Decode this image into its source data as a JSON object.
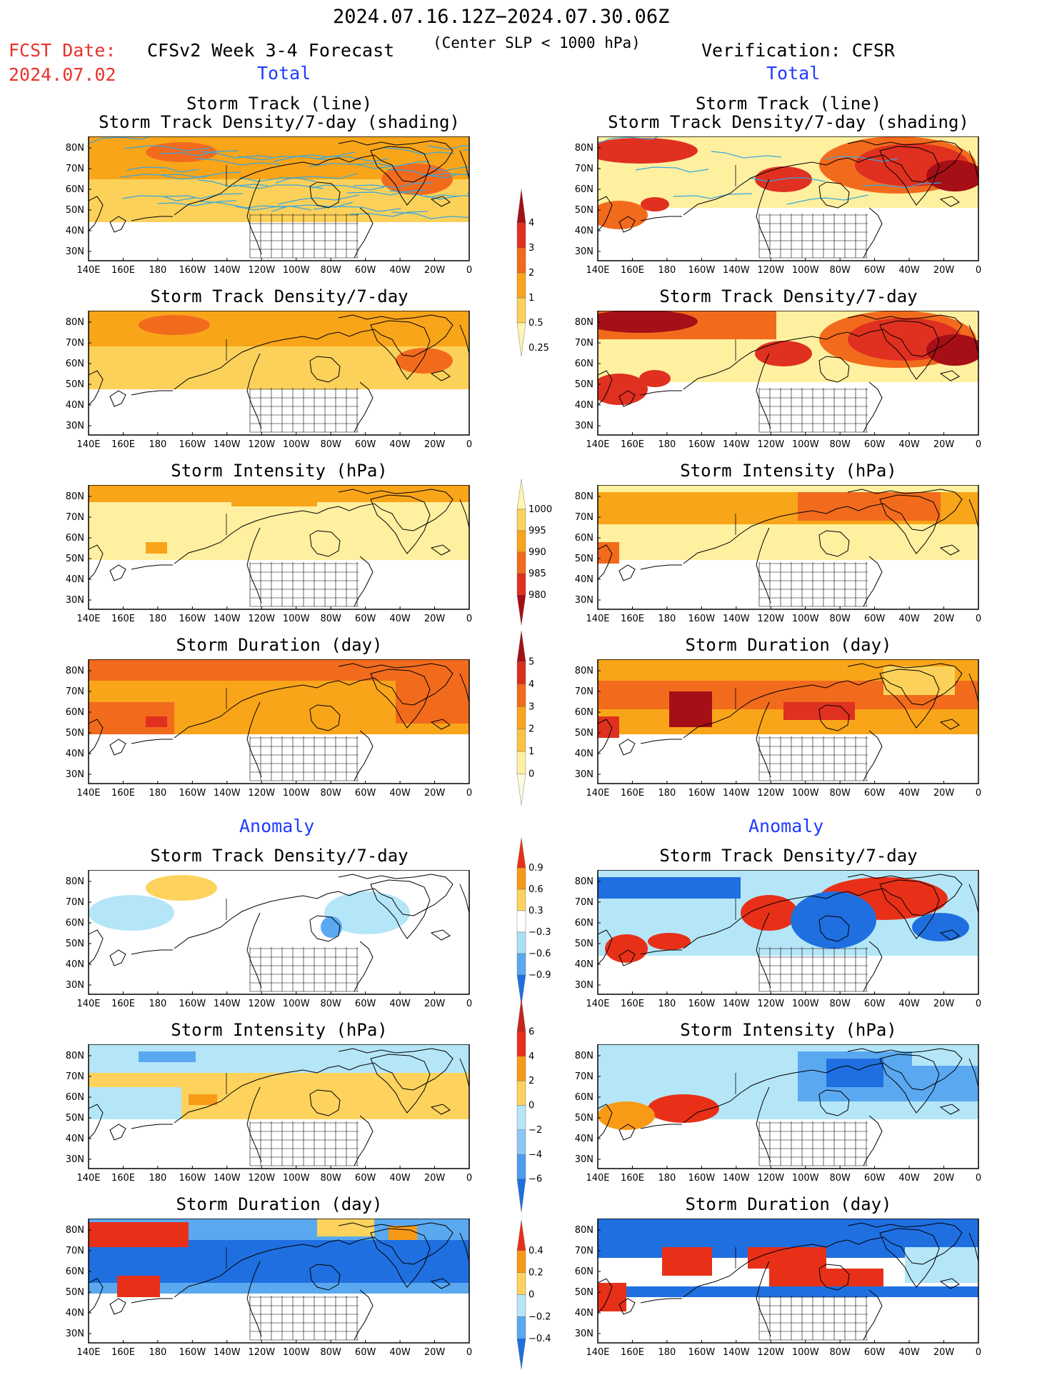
{
  "header": {
    "period": "2024.07.16.12Z−2024.07.30.06Z",
    "fcst_label": "FCST Date:",
    "fcst_date": "2024.07.02",
    "model": "CFSv2 Week 3-4 Forecast",
    "criterion": "(Center SLP < 1000 hPa)",
    "verification": "Verification: CFSR"
  },
  "sections": {
    "total": "Total",
    "anomaly": "Anomaly"
  },
  "panel_titles": {
    "track_line": "Storm Track (line)",
    "track_shading": "Storm Track Density/7-day (shading)",
    "density": "Storm Track Density/7-day",
    "intensity": "Storm Intensity (hPa)",
    "duration": "Storm Duration (day)"
  },
  "axes": {
    "lon_labels": [
      "140E",
      "160E",
      "180",
      "160W",
      "140W",
      "120W",
      "100W",
      "80W",
      "60W",
      "40W",
      "20W",
      "0"
    ],
    "lat_labels": [
      "80N",
      "70N",
      "60N",
      "50N",
      "40N",
      "30N"
    ]
  },
  "colorbars": {
    "density_total": {
      "labels": [
        "4",
        "3",
        "2",
        "1",
        "0.5",
        "0.25"
      ],
      "colors": [
        "#a50f15",
        "#e03020",
        "#f26b1d",
        "#f9a51a",
        "#fcd15a",
        "#fff5b0"
      ]
    },
    "intensity_total": {
      "labels": [
        "1000",
        "995",
        "990",
        "985",
        "980"
      ],
      "colors": [
        "#fff5b0",
        "#fbd35a",
        "#f9a51a",
        "#f26b1d",
        "#e03020",
        "#a50f15"
      ]
    },
    "duration_total": {
      "labels": [
        "5",
        "4",
        "3",
        "2",
        "1",
        "0"
      ],
      "colors": [
        "#a50f15",
        "#d9301d",
        "#f26b1d",
        "#f9a51a",
        "#fbc244",
        "#fff0a0",
        "#fffbe0"
      ]
    },
    "density_anom": {
      "labels": [
        "0.9",
        "0.6",
        "0.3",
        "−0.3",
        "−0.6",
        "−0.9"
      ],
      "colors": [
        "#e83018",
        "#f99a16",
        "#fdd35e",
        "#ffffff",
        "#a8dff5",
        "#5aa9f0",
        "#1f6fe0"
      ]
    },
    "intensity_anom": {
      "labels": [
        "6",
        "4",
        "2",
        "0",
        "−2",
        "−4",
        "−6"
      ],
      "colors": [
        "#c8241c",
        "#e83018",
        "#f99a16",
        "#fdd35e",
        "#b5e6f8",
        "#8cc8f5",
        "#4e9cf0",
        "#1f6fe0"
      ]
    },
    "duration_anom": {
      "labels": [
        "0.4",
        "0.2",
        "0",
        "−0.2",
        "−0.4"
      ],
      "colors": [
        "#e83018",
        "#f99a16",
        "#fdd35e",
        "#b5e6f8",
        "#5aa9f0",
        "#1f6fe0"
      ]
    }
  },
  "colors": {
    "track_line": "#3aa6dd",
    "coast": "#000000"
  }
}
